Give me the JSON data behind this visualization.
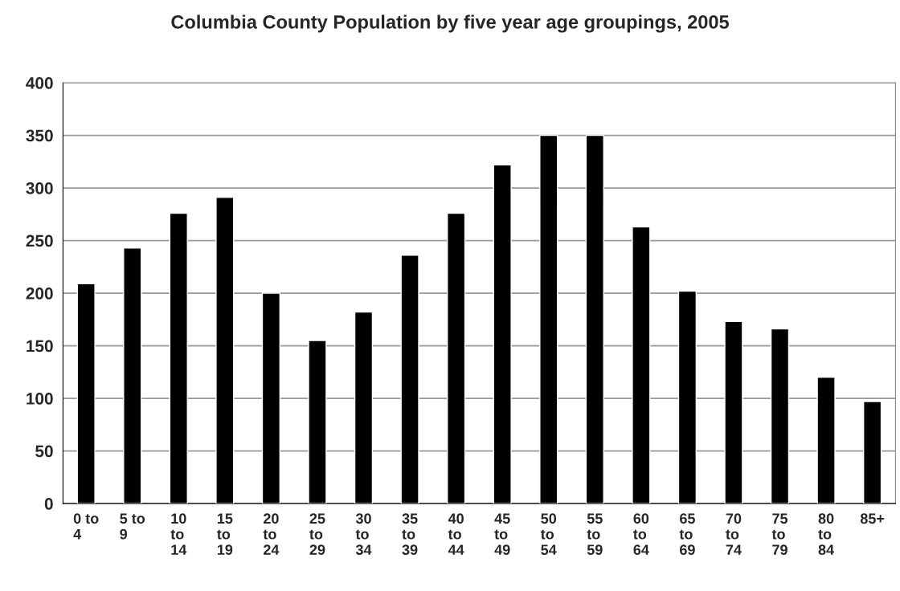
{
  "chart_data": {
    "type": "bar",
    "title": "Columbia County Population by five year age groupings, 2005",
    "categories": [
      "0 to\n4",
      "5 to\n9",
      "10\nto\n14",
      "15\nto\n19",
      "20\nto\n24",
      "25\nto\n29",
      "30\nto\n34",
      "35\nto\n39",
      "40\nto\n44",
      "45\nto\n49",
      "50\nto\n54",
      "55\nto\n59",
      "60\nto\n64",
      "65\nto\n69",
      "70\nto\n74",
      "75\nto\n79",
      "80\nto\n84",
      "85+"
    ],
    "values": [
      209,
      243,
      276,
      291,
      200,
      155,
      182,
      236,
      276,
      322,
      350,
      350,
      263,
      202,
      173,
      166,
      120,
      97
    ],
    "color": "#000000",
    "ylim": [
      0,
      400
    ],
    "yticks": [
      0,
      50,
      100,
      150,
      200,
      250,
      300,
      350,
      400
    ],
    "grid": "y",
    "legend": false
  }
}
